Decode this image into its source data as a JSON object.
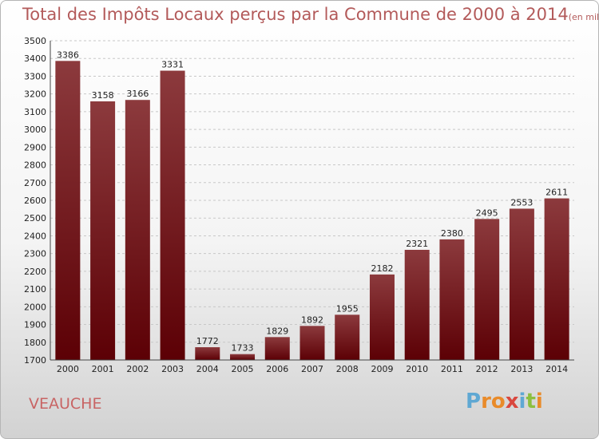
{
  "title": "Total des Impôts Locaux perçus par la Commune de 2000 à 2014",
  "unit": "(en milliers d'€)",
  "commune": "VEAUCHE",
  "logo": {
    "letters": [
      "P",
      "r",
      "o",
      "x",
      "i",
      "t",
      "i"
    ],
    "colors": [
      "#5fa8d3",
      "#e98b2a",
      "#e98b2a",
      "#d9473e",
      "#5fa8d3",
      "#8cbf3f",
      "#e98b2a"
    ]
  },
  "chart_data": {
    "type": "bar",
    "categories": [
      "2000",
      "2001",
      "2002",
      "2003",
      "2004",
      "2005",
      "2006",
      "2007",
      "2008",
      "2009",
      "2010",
      "2011",
      "2012",
      "2013",
      "2014"
    ],
    "values": [
      3386,
      3158,
      3166,
      3331,
      1772,
      1733,
      1829,
      1892,
      1955,
      2182,
      2321,
      2380,
      2495,
      2553,
      2611
    ],
    "ylim": [
      1700,
      3500
    ],
    "yticks": [
      1700,
      1800,
      1900,
      2000,
      2100,
      2200,
      2300,
      2400,
      2500,
      2600,
      2700,
      2800,
      2900,
      3000,
      3100,
      3200,
      3300,
      3400,
      3500
    ],
    "grid": true,
    "colors": {
      "bar_top": "#8c3a3d",
      "bar_bottom": "#5c0005",
      "grid": "#c8c8c8"
    }
  }
}
